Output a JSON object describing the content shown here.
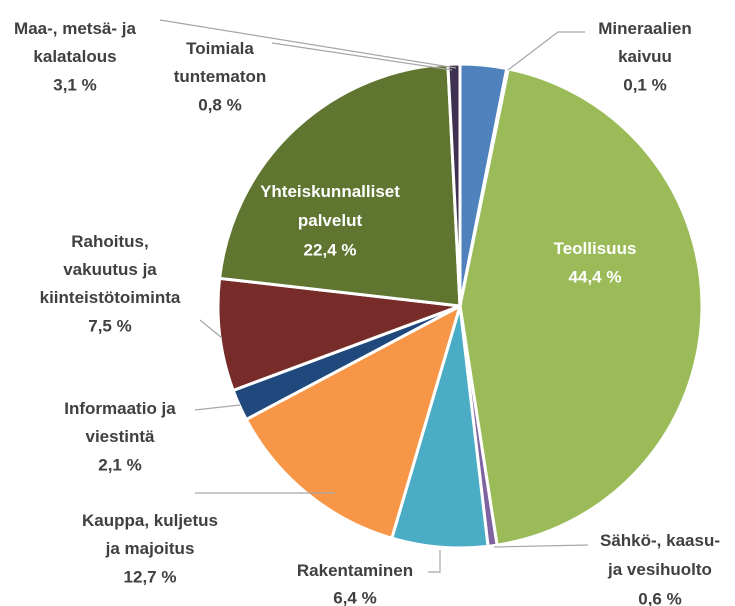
{
  "chart_data": {
    "type": "pie",
    "categories": [
      "Maa-, metsä- ja\nkalatalous",
      "Mineraalien\nkaivuu",
      "Teollisuus",
      "Sähkö-, kaasu-\nja vesihuolto",
      "Rakentaminen",
      "Kauppa, kuljetus\nja majoitus",
      "Informaatio ja\nviestintä",
      "Rahoitus,\nvakuutus ja\nkiinteistötoiminta",
      "Yhteiskunnalliset\npalvelut",
      "Toimiala\ntuntematon"
    ],
    "values": [
      3.1,
      0.1,
      44.4,
      0.6,
      6.4,
      12.7,
      2.1,
      7.5,
      22.4,
      0.8
    ],
    "value_labels": [
      "3,1 %",
      "0,1 %",
      "44,4 %",
      "0,6 %",
      "6,4 %",
      "12,7 %",
      "2,1 %",
      "7,5 %",
      "22,4 %",
      "0,8 %"
    ],
    "colors": [
      "#4f81bd",
      "#c0504d",
      "#9bbb59",
      "#8064a2",
      "#4bacc6",
      "#f79646",
      "#1f497d",
      "#772c2a",
      "#5f7530",
      "#3f3151"
    ]
  }
}
